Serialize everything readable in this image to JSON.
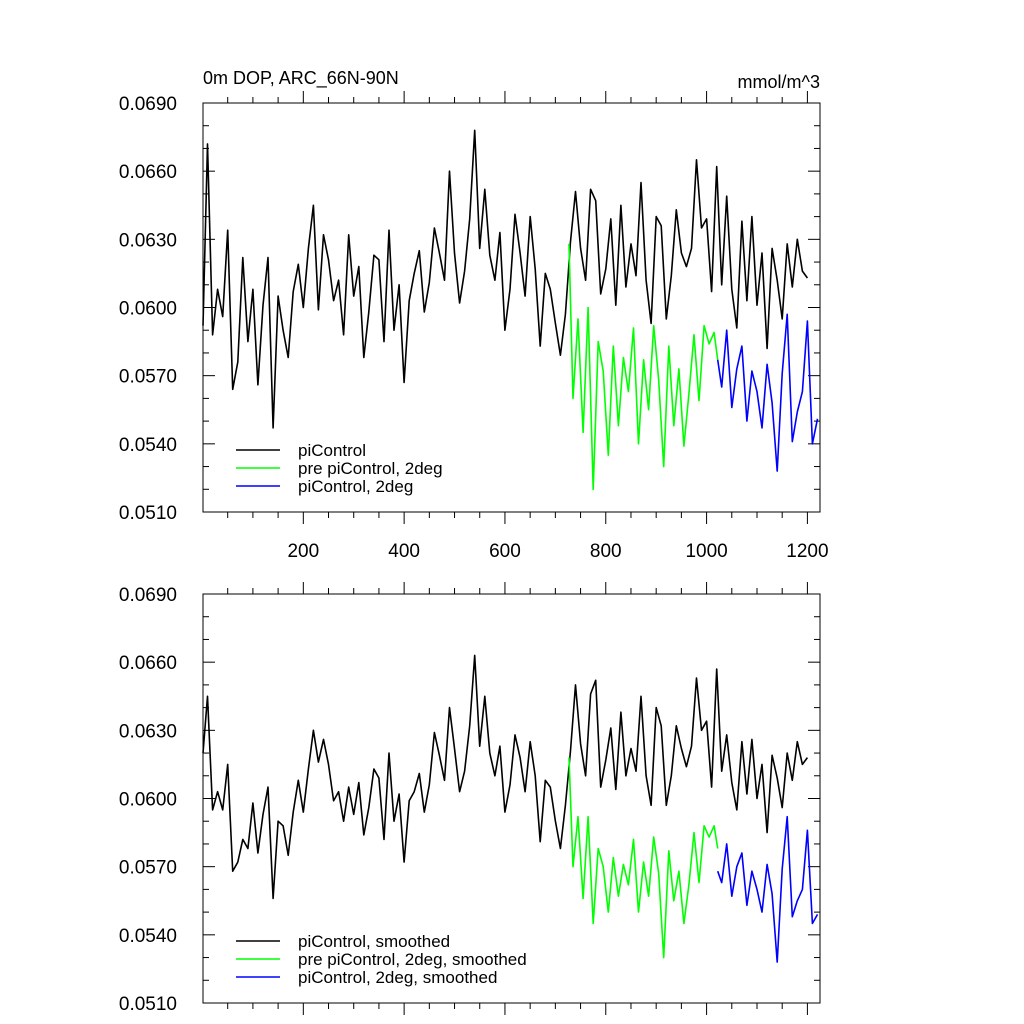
{
  "chart_data": [
    {
      "type": "line",
      "title": "0m DOP, ARC_66N-90N",
      "units": "mmol/m^3",
      "xlabel": "",
      "ylabel": "",
      "xlim": [
        1,
        1225
      ],
      "ylim": [
        0.051,
        0.069
      ],
      "xticks": [
        200,
        400,
        600,
        800,
        1000,
        1200
      ],
      "xtick_labels": [
        "200",
        "400",
        "600",
        "800",
        "1000",
        "1200"
      ],
      "yticks": [
        0.051,
        0.054,
        0.057,
        0.06,
        0.063,
        0.066,
        0.069
      ],
      "ytick_labels": [
        "0.0510",
        "0.0540",
        "0.0570",
        "0.0600",
        "0.0630",
        "0.0660",
        "0.0690"
      ],
      "grid": false,
      "legend_position": "bottom-left",
      "series": [
        {
          "name": "piControl",
          "color": "#000000",
          "x": [
            1,
            10,
            20,
            30,
            40,
            50,
            60,
            70,
            80,
            90,
            100,
            110,
            120,
            130,
            140,
            150,
            160,
            170,
            180,
            190,
            200,
            210,
            220,
            230,
            240,
            250,
            260,
            270,
            280,
            290,
            300,
            310,
            320,
            330,
            340,
            350,
            360,
            370,
            380,
            390,
            400,
            410,
            420,
            430,
            440,
            450,
            460,
            470,
            480,
            490,
            500,
            510,
            520,
            530,
            540,
            550,
            560,
            570,
            580,
            590,
            600,
            610,
            620,
            630,
            640,
            650,
            660,
            670,
            680,
            690,
            700,
            710,
            720,
            730,
            740,
            750,
            760,
            770,
            780,
            790,
            800,
            810,
            820,
            830,
            840,
            850,
            860,
            870,
            880,
            890,
            900,
            910,
            920,
            930,
            940,
            950,
            960,
            970,
            980,
            990,
            1000,
            1010,
            1020,
            1030,
            1040,
            1050,
            1060,
            1070,
            1080,
            1090,
            1100,
            1110,
            1120,
            1130,
            1140,
            1150,
            1160,
            1170,
            1180,
            1190,
            1200
          ],
          "y": [
            0.0592,
            0.0672,
            0.0588,
            0.0608,
            0.0596,
            0.0634,
            0.0564,
            0.0576,
            0.0622,
            0.0585,
            0.0608,
            0.0566,
            0.0601,
            0.0622,
            0.0547,
            0.0605,
            0.059,
            0.0578,
            0.0607,
            0.0619,
            0.06,
            0.0626,
            0.0645,
            0.0599,
            0.0632,
            0.0621,
            0.0603,
            0.0612,
            0.0588,
            0.0632,
            0.0605,
            0.0618,
            0.0578,
            0.0598,
            0.0623,
            0.0621,
            0.0585,
            0.0634,
            0.059,
            0.061,
            0.0567,
            0.0603,
            0.0615,
            0.0625,
            0.0598,
            0.0611,
            0.0635,
            0.0624,
            0.0612,
            0.066,
            0.0624,
            0.0602,
            0.0616,
            0.0639,
            0.0678,
            0.0626,
            0.0652,
            0.0623,
            0.0612,
            0.0633,
            0.059,
            0.0608,
            0.0641,
            0.0624,
            0.0605,
            0.064,
            0.0617,
            0.0583,
            0.0615,
            0.0608,
            0.0593,
            0.0579,
            0.0597,
            0.0629,
            0.0651,
            0.0626,
            0.0612,
            0.0652,
            0.0647,
            0.0606,
            0.0617,
            0.0639,
            0.0601,
            0.0645,
            0.0609,
            0.0628,
            0.0614,
            0.0655,
            0.0612,
            0.0593,
            0.064,
            0.0636,
            0.0595,
            0.0614,
            0.0643,
            0.0624,
            0.0618,
            0.0626,
            0.0665,
            0.0635,
            0.0639,
            0.0607,
            0.0662,
            0.061,
            0.0649,
            0.0608,
            0.0591,
            0.0638,
            0.0603,
            0.064,
            0.0601,
            0.0624,
            0.0582,
            0.0626,
            0.0612,
            0.0595,
            0.0628,
            0.0609,
            0.063,
            0.0616,
            0.0613
          ]
        },
        {
          "name": "pre piControl, 2deg",
          "color": "#00ff00",
          "x": [
            727,
            735,
            745,
            755,
            765,
            775,
            785,
            795,
            805,
            815,
            825,
            835,
            845,
            855,
            865,
            875,
            885,
            895,
            905,
            915,
            925,
            935,
            945,
            955,
            965,
            975,
            985,
            995,
            1005,
            1015,
            1022
          ],
          "y": [
            0.0628,
            0.056,
            0.0595,
            0.0545,
            0.06,
            0.052,
            0.0585,
            0.0572,
            0.0535,
            0.0583,
            0.0548,
            0.0578,
            0.0563,
            0.0591,
            0.054,
            0.0577,
            0.0555,
            0.0592,
            0.0568,
            0.053,
            0.0583,
            0.0548,
            0.0573,
            0.0539,
            0.0562,
            0.0588,
            0.0559,
            0.0592,
            0.0584,
            0.0589,
            0.0577
          ]
        },
        {
          "name": "piControl, 2deg",
          "color": "#0000ff",
          "x": [
            1022,
            1030,
            1040,
            1050,
            1060,
            1070,
            1080,
            1090,
            1100,
            1110,
            1120,
            1130,
            1140,
            1150,
            1160,
            1170,
            1180,
            1190,
            1200,
            1210,
            1220
          ],
          "y": [
            0.0577,
            0.0565,
            0.059,
            0.0556,
            0.0573,
            0.0583,
            0.055,
            0.0572,
            0.0563,
            0.0547,
            0.0575,
            0.0558,
            0.0528,
            0.0571,
            0.0597,
            0.0541,
            0.0554,
            0.0563,
            0.0594,
            0.054,
            0.0551
          ]
        }
      ]
    },
    {
      "type": "line",
      "title": "",
      "xlabel": "",
      "ylabel": "",
      "xlim": [
        1,
        1225
      ],
      "ylim": [
        0.051,
        0.069
      ],
      "xticks": [
        200,
        400,
        600,
        800,
        1000,
        1200
      ],
      "yticks": [
        0.051,
        0.054,
        0.057,
        0.06,
        0.063,
        0.066,
        0.069
      ],
      "ytick_labels": [
        "0.0510",
        "0.0540",
        "0.0570",
        "0.0600",
        "0.0630",
        "0.0660",
        "0.0690"
      ],
      "grid": false,
      "legend_position": "bottom-left",
      "series": [
        {
          "name": "piControl, smoothed",
          "color": "#000000",
          "x": [
            1,
            10,
            20,
            30,
            40,
            50,
            60,
            70,
            80,
            90,
            100,
            110,
            120,
            130,
            140,
            150,
            160,
            170,
            180,
            190,
            200,
            210,
            220,
            230,
            240,
            250,
            260,
            270,
            280,
            290,
            300,
            310,
            320,
            330,
            340,
            350,
            360,
            370,
            380,
            390,
            400,
            410,
            420,
            430,
            440,
            450,
            460,
            470,
            480,
            490,
            500,
            510,
            520,
            530,
            540,
            550,
            560,
            570,
            580,
            590,
            600,
            610,
            620,
            630,
            640,
            650,
            660,
            670,
            680,
            690,
            700,
            710,
            720,
            730,
            740,
            750,
            760,
            770,
            780,
            790,
            800,
            810,
            820,
            830,
            840,
            850,
            860,
            870,
            880,
            890,
            900,
            910,
            920,
            930,
            940,
            950,
            960,
            970,
            980,
            990,
            1000,
            1010,
            1020,
            1030,
            1040,
            1050,
            1060,
            1070,
            1080,
            1090,
            1100,
            1110,
            1120,
            1130,
            1140,
            1150,
            1160,
            1170,
            1180,
            1190,
            1200
          ],
          "y": [
            0.062,
            0.0645,
            0.0595,
            0.0603,
            0.0595,
            0.0615,
            0.0568,
            0.0572,
            0.0582,
            0.0578,
            0.0598,
            0.0576,
            0.0593,
            0.0605,
            0.0556,
            0.059,
            0.0588,
            0.0575,
            0.0594,
            0.0608,
            0.0594,
            0.0613,
            0.063,
            0.0616,
            0.0626,
            0.0615,
            0.0599,
            0.0603,
            0.059,
            0.0605,
            0.0593,
            0.0607,
            0.0584,
            0.0596,
            0.0613,
            0.0609,
            0.0582,
            0.062,
            0.059,
            0.0602,
            0.0572,
            0.0599,
            0.0603,
            0.0611,
            0.0594,
            0.0606,
            0.0629,
            0.0619,
            0.0608,
            0.064,
            0.0622,
            0.0603,
            0.0612,
            0.0632,
            0.0663,
            0.0623,
            0.0645,
            0.062,
            0.061,
            0.0623,
            0.0594,
            0.0606,
            0.0628,
            0.0618,
            0.0603,
            0.0625,
            0.061,
            0.0581,
            0.0608,
            0.0605,
            0.059,
            0.0578,
            0.0597,
            0.0621,
            0.065,
            0.0624,
            0.061,
            0.0646,
            0.0652,
            0.0605,
            0.0617,
            0.0631,
            0.0604,
            0.0638,
            0.061,
            0.0622,
            0.0612,
            0.0645,
            0.061,
            0.0597,
            0.064,
            0.0632,
            0.0597,
            0.061,
            0.0632,
            0.0622,
            0.0614,
            0.0623,
            0.0653,
            0.063,
            0.0634,
            0.0605,
            0.0657,
            0.0612,
            0.0628,
            0.0607,
            0.0595,
            0.0625,
            0.0602,
            0.0626,
            0.06,
            0.0615,
            0.0585,
            0.0619,
            0.0609,
            0.0596,
            0.062,
            0.0608,
            0.0625,
            0.0615,
            0.0618
          ]
        },
        {
          "name": "pre piControl, 2deg, smoothed",
          "color": "#00ff00",
          "x": [
            727,
            735,
            745,
            755,
            765,
            775,
            785,
            795,
            805,
            815,
            825,
            835,
            845,
            855,
            865,
            875,
            885,
            895,
            905,
            915,
            925,
            935,
            945,
            955,
            965,
            975,
            985,
            995,
            1005,
            1015,
            1022
          ],
          "y": [
            0.0618,
            0.057,
            0.0592,
            0.0556,
            0.0592,
            0.0545,
            0.0578,
            0.057,
            0.055,
            0.0574,
            0.0557,
            0.0571,
            0.0562,
            0.0582,
            0.055,
            0.0572,
            0.0557,
            0.0583,
            0.0567,
            0.053,
            0.0577,
            0.0555,
            0.0568,
            0.0545,
            0.0562,
            0.0585,
            0.0563,
            0.0588,
            0.0583,
            0.0588,
            0.0578
          ]
        },
        {
          "name": "piControl, 2deg, smoothed",
          "color": "#0000ff",
          "x": [
            1022,
            1030,
            1040,
            1050,
            1060,
            1070,
            1080,
            1090,
            1100,
            1110,
            1120,
            1130,
            1140,
            1150,
            1160,
            1170,
            1180,
            1190,
            1200,
            1210,
            1220
          ],
          "y": [
            0.0568,
            0.0563,
            0.058,
            0.0557,
            0.057,
            0.0576,
            0.0553,
            0.0568,
            0.056,
            0.055,
            0.0571,
            0.0558,
            0.0528,
            0.0569,
            0.0592,
            0.0548,
            0.0555,
            0.056,
            0.0586,
            0.0545,
            0.0549
          ]
        }
      ]
    }
  ]
}
